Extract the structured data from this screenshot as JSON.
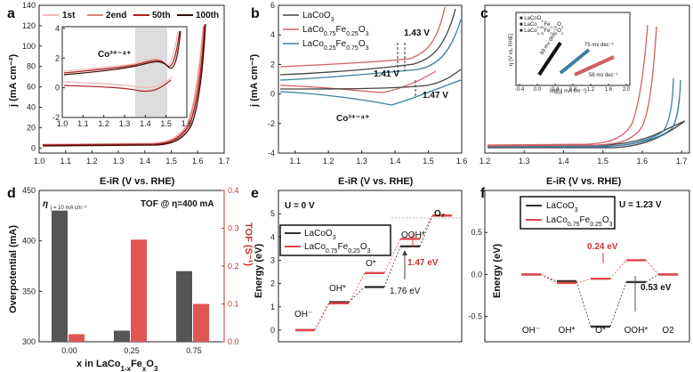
{
  "chart_data": [
    {
      "panel": "a",
      "type": "line",
      "xlabel": "E-iR (V vs. RHE)",
      "ylabel": "j (mA cm⁻²)",
      "xlim": [
        1.0,
        1.7
      ],
      "ylim": [
        -5,
        140
      ],
      "xticks": [
        "1.0",
        "1.1",
        "1.2",
        "1.3",
        "1.4",
        "1.5",
        "1.6",
        "1.7"
      ],
      "yticks": [
        "0",
        "20",
        "40",
        "60",
        "80",
        "100",
        "120",
        "140"
      ],
      "series": [
        {
          "name": "1st",
          "color": "#f2b6b6"
        },
        {
          "name": "2end",
          "color": "#e08080"
        },
        {
          "name": "50th",
          "color": "#b02020"
        },
        {
          "name": "100th",
          "color": "#3a0a0a"
        }
      ],
      "inset": {
        "xlim": [
          1.0,
          1.6
        ],
        "ylim": [
          -2,
          4
        ],
        "xticks": [
          "1.0",
          "1.1",
          "1.2",
          "1.3",
          "1.4",
          "1.5",
          "1.6"
        ],
        "yticks": [
          "-2",
          "0",
          "2",
          "4"
        ],
        "annotation": "Co³⁺⁻⁴⁺",
        "shaded": [
          1.35,
          1.53
        ]
      }
    },
    {
      "panel": "b",
      "type": "line",
      "xlabel": "E-iR (V vs. RHE)",
      "ylabel": "j (mA cm⁻²)",
      "xlim": [
        1.05,
        1.6
      ],
      "ylim": [
        -4,
        6
      ],
      "xticks": [
        "1.1",
        "1.2",
        "1.3",
        "1.4",
        "1.5",
        "1.6"
      ],
      "yticks": [
        "-4",
        "-2",
        "0",
        "2",
        "4",
        "6"
      ],
      "series": [
        {
          "name": "LaCoO3",
          "color": "#444444"
        },
        {
          "name": "LaCo0.75Fe0.25O3",
          "color": "#d06060"
        },
        {
          "name": "LaCo0.25Fe0.75O3",
          "color": "#3a7f9f"
        }
      ],
      "annotations": [
        "1.43 V",
        "1.41 V",
        "1.47 V",
        "Co³⁺⁻⁴⁺"
      ]
    },
    {
      "panel": "c",
      "type": "line",
      "xlabel": "E-iR (V vs. RHE)",
      "xlim": [
        1.2,
        1.72
      ],
      "ylim": [
        0,
        140
      ],
      "xticks": [
        "1.2",
        "1.3",
        "1.4",
        "1.5",
        "1.6",
        "1.7"
      ],
      "series": [
        {
          "name": "LaCoO3",
          "color": "#444444"
        },
        {
          "name": "LaCo0.75Fe0.25O3",
          "color": "#d06060"
        },
        {
          "name": "LaCo0.25Fe0.75O3",
          "color": "#3a7f9f"
        }
      ],
      "inset": {
        "xlabel": "log(|j| mA cm⁻²)",
        "ylabel": "η (V vs. RHE)",
        "xticks": [
          "-0.4",
          "0.0",
          "0.4",
          "0.8",
          "1.2",
          "1.6",
          "2.0"
        ],
        "legend": [
          "LaCoO3",
          "LaCo0.25Fe0.75O3",
          "LaCo0.75Fe0.25O3"
        ],
        "slopes": [
          {
            "label": "89 mv dec⁻¹",
            "color": "#111111"
          },
          {
            "label": "75 mv dec⁻¹",
            "color": "#3a7f9f"
          },
          {
            "label": "56 mv dec⁻¹",
            "color": "#d06060"
          }
        ]
      }
    },
    {
      "panel": "d",
      "type": "bar",
      "categories": [
        "0.00",
        "0.25",
        "0.75"
      ],
      "xlabel": "x in LaCo1-xFexO3",
      "ylabel": "Overpotential (mA)",
      "ylabel2": "TOF (S⁻¹)",
      "ylim": [
        300,
        450
      ],
      "ylim2": [
        0,
        0.4
      ],
      "yticks": [
        "300",
        "350",
        "400",
        "450"
      ],
      "yticks2": [
        "0.0",
        "0.1",
        "0.2",
        "0.3",
        "0.4"
      ],
      "series": [
        {
          "name": "Overpotential",
          "axis": "left",
          "color": "#555555",
          "values": [
            430,
            311,
            370
          ]
        },
        {
          "name": "TOF",
          "axis": "right",
          "color": "#e05555",
          "values": [
            0.02,
            0.27,
            0.1
          ]
        }
      ],
      "legend": [
        "η",
        "j = 10 mA cm⁻²",
        "TOF @ η=400 mA"
      ]
    },
    {
      "panel": "e",
      "type": "line",
      "ylabel": "Energy (eV)",
      "ylim": [
        -0.5,
        6
      ],
      "yticks": [
        "0",
        "1",
        "2",
        "3",
        "4",
        "5"
      ],
      "condition": "U = 0 V",
      "states": [
        "OH⁻",
        "OH*",
        "O*",
        "OOH*",
        "O2"
      ],
      "series": [
        {
          "name": "LaCoO3",
          "color": "#333333",
          "values": [
            0,
            1.2,
            1.85,
            3.6,
            4.92
          ]
        },
        {
          "name": "LaCo0.75Fe0.25O3",
          "color": "#e04545",
          "values": [
            0,
            1.15,
            2.45,
            3.92,
            4.92
          ]
        }
      ],
      "annotations": [
        "1.47 eV",
        "1.76 eV"
      ]
    },
    {
      "panel": "f",
      "type": "line",
      "ylabel": "Energy (eV)",
      "ylim": [
        -0.8,
        1.0
      ],
      "yticks": [
        "-0.5",
        "0.0",
        "0.5"
      ],
      "condition": "U = 1.23 V",
      "categories": [
        "OH⁻",
        "OH*",
        "O*",
        "OOH*",
        "O2"
      ],
      "series": [
        {
          "name": "LaCoO3",
          "color": "#333333",
          "values": [
            0,
            -0.08,
            -0.62,
            -0.09,
            0
          ]
        },
        {
          "name": "LaCo0.75Fe0.25O3",
          "color": "#e04545",
          "values": [
            0,
            -0.1,
            -0.05,
            0.17,
            0
          ]
        }
      ],
      "annotations": [
        "0.24 eV",
        "0.53 eV"
      ]
    }
  ],
  "panels": {
    "a": "a",
    "b": "b",
    "c": "c",
    "d": "d",
    "e": "e",
    "f": "f"
  },
  "labels": {
    "a_1st": "1st",
    "a_2end": "2end",
    "a_50th": "50th",
    "a_100th": "100th",
    "a_inset_ann": "Co³⁺⁻⁴⁺",
    "b_l1": "LaCoO",
    "b_l2": "LaCo",
    "b_l3": "LaCo",
    "b_143": "1.43 V",
    "b_141": "1.41 V",
    "b_147": "1.47 V",
    "b_co": "Co³⁺⁻⁴⁺",
    "c_s1": "89 mv dec⁻¹",
    "c_s2": "75 mv dec⁻¹",
    "c_s3": "56 mv dec⁻¹",
    "c_ix": "log(|j| mA cm⁻²)",
    "c_iy": "η (V vs. RHE)",
    "d_eta": "η",
    "d_j": "j = 10 mA cm⁻²",
    "d_tof": "TOF @ η=400 mA",
    "d_ylabel": "Overpotential (mA)",
    "d_y2label": "TOF (S⁻¹)",
    "d_xlabel": "x in LaCo",
    "d_xlabel_fe": "Fe",
    "d_xlabel_o": "O",
    "e_u": "U = 0 V",
    "e_o2": "O",
    "e_147": "1.47 eV",
    "e_176": "1.76 eV",
    "e_ylabel": "Energy (eV)",
    "f_u": "U = 1.23 V",
    "f_024": "0.24 eV",
    "f_053": "0.53 eV",
    "f_ylabel": "Energy (eV)",
    "xlabel_eir": "E-iR (V vs. RHE)",
    "ylabel_j": "j (mA cm⁻²)",
    "s_oh": "OH⁻",
    "s_ohstar": "OH*",
    "s_ostar": "O*",
    "s_oohstar": "OOH*",
    "s_o2": "O₂"
  }
}
